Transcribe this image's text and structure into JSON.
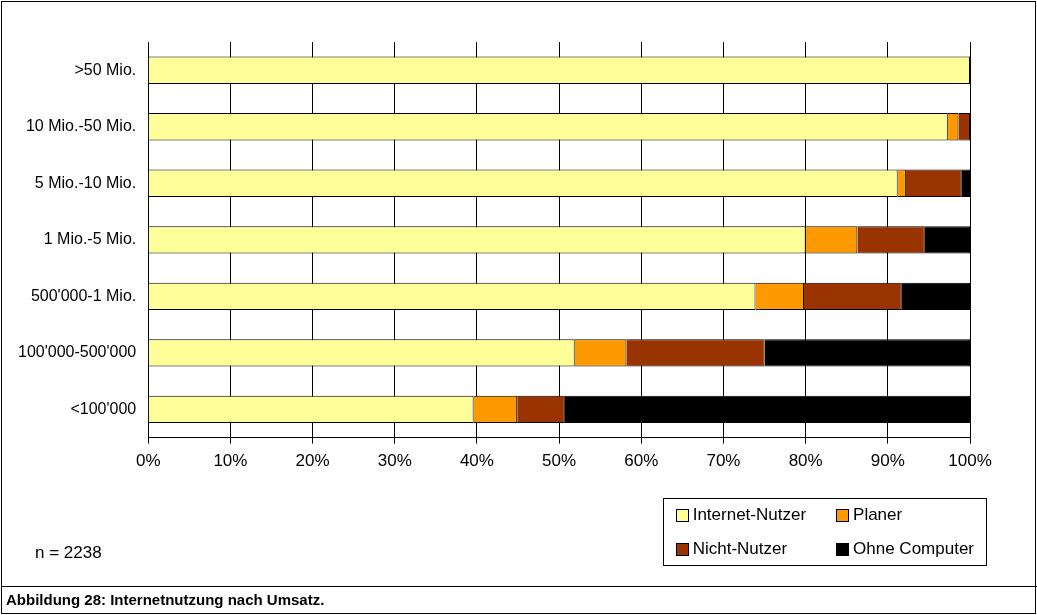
{
  "chart_data": {
    "type": "bar",
    "orientation": "horizontal",
    "stacked": true,
    "title": "Abbildung 28: Internetnutzung nach Umsatz.",
    "categories": [
      ">50 Mio.",
      "10 Mio.-50 Mio.",
      "5 Mio.-10 Mio.",
      "1 Mio.-5 Mio.",
      "500'000-1 Mio.",
      "100'000-500'000",
      "<100'000"
    ],
    "series": [
      {
        "name": "Internet-Nutzer",
        "color": "#ffff99",
        "values": [
          100,
          97.3,
          91.2,
          80.0,
          73.9,
          51.9,
          39.6
        ]
      },
      {
        "name": "Planer",
        "color": "#ff9900",
        "values": [
          0,
          1.3,
          1.0,
          6.3,
          5.9,
          6.3,
          5.3
        ]
      },
      {
        "name": "Nicht-Nutzer",
        "color": "#993300",
        "values": [
          0,
          1.4,
          6.8,
          8.2,
          11.9,
          16.8,
          5.8
        ]
      },
      {
        "name": "Ohne Computer",
        "color": "#000000",
        "values": [
          0,
          0,
          1.0,
          5.5,
          8.3,
          25.0,
          49.3
        ]
      }
    ],
    "xlim": [
      0,
      100
    ],
    "xticks": [
      {
        "value": 0,
        "label": "0%"
      },
      {
        "value": 10,
        "label": "10%"
      },
      {
        "value": 20,
        "label": "20%"
      },
      {
        "value": 30,
        "label": "30%"
      },
      {
        "value": 40,
        "label": "40%"
      },
      {
        "value": 50,
        "label": "50%"
      },
      {
        "value": 60,
        "label": "60%"
      },
      {
        "value": 70,
        "label": "70%"
      },
      {
        "value": 80,
        "label": "80%"
      },
      {
        "value": 90,
        "label": "90%"
      },
      {
        "value": 100,
        "label": "100%"
      }
    ],
    "grid": "x",
    "legend": "bottom right",
    "annotations": [
      "n = 2238"
    ]
  }
}
